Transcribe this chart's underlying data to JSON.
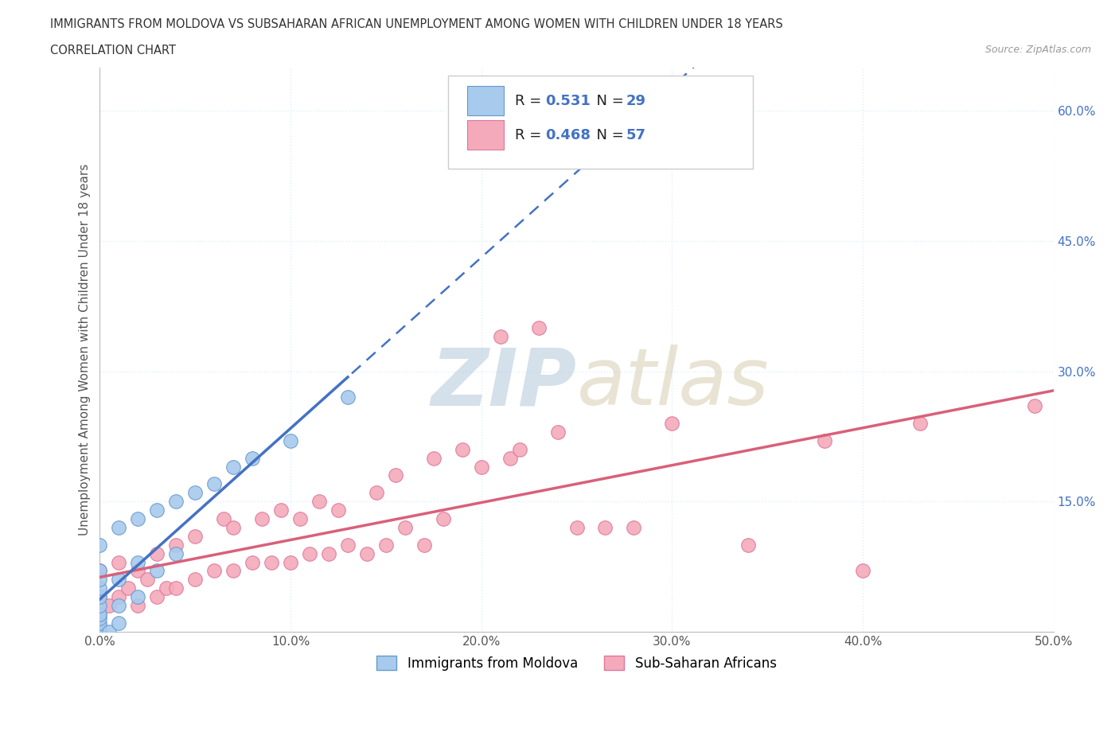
{
  "title_line1": "IMMIGRANTS FROM MOLDOVA VS SUBSAHARAN AFRICAN UNEMPLOYMENT AMONG WOMEN WITH CHILDREN UNDER 18 YEARS",
  "title_line2": "CORRELATION CHART",
  "source": "Source: ZipAtlas.com",
  "ylabel": "Unemployment Among Women with Children Under 18 years",
  "xlim": [
    0.0,
    0.5
  ],
  "ylim": [
    0.0,
    0.65
  ],
  "xtick_labels": [
    "0.0%",
    "10.0%",
    "20.0%",
    "30.0%",
    "40.0%",
    "50.0%"
  ],
  "xtick_vals": [
    0.0,
    0.1,
    0.2,
    0.3,
    0.4,
    0.5
  ],
  "ytick_labels": [
    "15.0%",
    "30.0%",
    "45.0%",
    "60.0%"
  ],
  "ytick_vals": [
    0.15,
    0.3,
    0.45,
    0.6
  ],
  "moldova_color": "#A8CAED",
  "moldova_edge_color": "#6699CC",
  "subsaharan_color": "#F4AABB",
  "subsaharan_edge_color": "#DD7799",
  "moldova_R": "0.531",
  "moldova_N": "29",
  "subsaharan_R": "0.468",
  "subsaharan_N": "57",
  "moldova_trend_color": "#4472C4",
  "subsaharan_trend_color": "#D9607A",
  "background_color": "#FFFFFF",
  "grid_color": "#DDEEFF",
  "watermark_color": "#C8DDEF",
  "moldova_x": [
    0.0,
    0.0,
    0.0,
    0.0,
    0.0,
    0.0,
    0.0,
    0.0,
    0.0,
    0.0,
    0.005,
    0.01,
    0.01,
    0.01,
    0.02,
    0.02,
    0.03,
    0.04,
    0.0,
    0.01,
    0.02,
    0.03,
    0.04,
    0.05,
    0.06,
    0.07,
    0.08,
    0.1,
    0.13
  ],
  "moldova_y": [
    0.0,
    0.005,
    0.01,
    0.015,
    0.02,
    0.03,
    0.04,
    0.05,
    0.06,
    0.07,
    0.0,
    0.01,
    0.03,
    0.06,
    0.04,
    0.08,
    0.07,
    0.09,
    0.1,
    0.12,
    0.13,
    0.14,
    0.15,
    0.16,
    0.17,
    0.19,
    0.2,
    0.22,
    0.27
  ],
  "subsaharan_x": [
    0.0,
    0.0,
    0.0,
    0.0,
    0.005,
    0.01,
    0.01,
    0.015,
    0.02,
    0.02,
    0.025,
    0.03,
    0.03,
    0.035,
    0.04,
    0.04,
    0.05,
    0.05,
    0.06,
    0.065,
    0.07,
    0.07,
    0.08,
    0.085,
    0.09,
    0.095,
    0.1,
    0.105,
    0.11,
    0.115,
    0.12,
    0.125,
    0.13,
    0.14,
    0.145,
    0.15,
    0.155,
    0.16,
    0.17,
    0.175,
    0.18,
    0.19,
    0.2,
    0.21,
    0.215,
    0.22,
    0.23,
    0.24,
    0.25,
    0.265,
    0.28,
    0.3,
    0.34,
    0.38,
    0.4,
    0.43,
    0.49
  ],
  "subsaharan_y": [
    0.0,
    0.02,
    0.04,
    0.07,
    0.03,
    0.04,
    0.08,
    0.05,
    0.03,
    0.07,
    0.06,
    0.04,
    0.09,
    0.05,
    0.05,
    0.1,
    0.06,
    0.11,
    0.07,
    0.13,
    0.07,
    0.12,
    0.08,
    0.13,
    0.08,
    0.14,
    0.08,
    0.13,
    0.09,
    0.15,
    0.09,
    0.14,
    0.1,
    0.09,
    0.16,
    0.1,
    0.18,
    0.12,
    0.1,
    0.2,
    0.13,
    0.21,
    0.19,
    0.34,
    0.2,
    0.21,
    0.35,
    0.23,
    0.12,
    0.12,
    0.12,
    0.24,
    0.1,
    0.22,
    0.07,
    0.24,
    0.26
  ],
  "legend_label_moldova": "Immigrants from Moldova",
  "legend_label_subsaharan": "Sub-Saharan Africans"
}
